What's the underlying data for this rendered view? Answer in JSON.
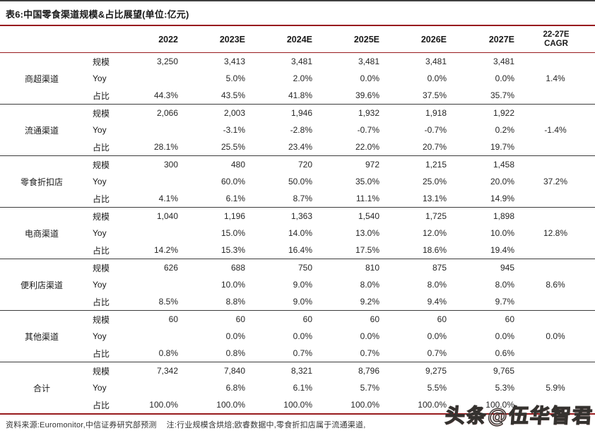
{
  "title": "表6:中国零食渠道规模&占比展望(单位:亿元)",
  "table": {
    "metric_labels": [
      "规模",
      "Yoy",
      "占比"
    ],
    "year_columns": [
      "2022",
      "2023E",
      "2024E",
      "2025E",
      "2026E",
      "2027E"
    ],
    "cagr_header_lines": [
      "22-27E",
      "CAGR"
    ],
    "groups": [
      {
        "name": "商超渠道",
        "cagr": "1.4%",
        "scale": [
          "3,250",
          "3,413",
          "3,481",
          "3,481",
          "3,481",
          "3,481"
        ],
        "yoy": [
          "",
          "5.0%",
          "2.0%",
          "0.0%",
          "0.0%",
          "0.0%"
        ],
        "share": [
          "44.3%",
          "43.5%",
          "41.8%",
          "39.6%",
          "37.5%",
          "35.7%"
        ]
      },
      {
        "name": "流通渠道",
        "cagr": "-1.4%",
        "scale": [
          "2,066",
          "2,003",
          "1,946",
          "1,932",
          "1,918",
          "1,922"
        ],
        "yoy": [
          "",
          "-3.1%",
          "-2.8%",
          "-0.7%",
          "-0.7%",
          "0.2%"
        ],
        "share": [
          "28.1%",
          "25.5%",
          "23.4%",
          "22.0%",
          "20.7%",
          "19.7%"
        ]
      },
      {
        "name": "零食折扣店",
        "cagr": "37.2%",
        "scale": [
          "300",
          "480",
          "720",
          "972",
          "1,215",
          "1,458"
        ],
        "yoy": [
          "",
          "60.0%",
          "50.0%",
          "35.0%",
          "25.0%",
          "20.0%"
        ],
        "share": [
          "4.1%",
          "6.1%",
          "8.7%",
          "11.1%",
          "13.1%",
          "14.9%"
        ]
      },
      {
        "name": "电商渠道",
        "cagr": "12.8%",
        "scale": [
          "1,040",
          "1,196",
          "1,363",
          "1,540",
          "1,725",
          "1,898"
        ],
        "yoy": [
          "",
          "15.0%",
          "14.0%",
          "13.0%",
          "12.0%",
          "10.0%"
        ],
        "share": [
          "14.2%",
          "15.3%",
          "16.4%",
          "17.5%",
          "18.6%",
          "19.4%"
        ]
      },
      {
        "name": "便利店渠道",
        "cagr": "8.6%",
        "scale": [
          "626",
          "688",
          "750",
          "810",
          "875",
          "945"
        ],
        "yoy": [
          "",
          "10.0%",
          "9.0%",
          "8.0%",
          "8.0%",
          "8.0%"
        ],
        "share": [
          "8.5%",
          "8.8%",
          "9.0%",
          "9.2%",
          "9.4%",
          "9.7%"
        ]
      },
      {
        "name": "其他渠道",
        "cagr": "0.0%",
        "scale": [
          "60",
          "60",
          "60",
          "60",
          "60",
          "60"
        ],
        "yoy": [
          "",
          "0.0%",
          "0.0%",
          "0.0%",
          "0.0%",
          "0.0%"
        ],
        "share": [
          "0.8%",
          "0.8%",
          "0.7%",
          "0.7%",
          "0.7%",
          "0.6%"
        ]
      },
      {
        "name": "合计",
        "cagr": "5.9%",
        "scale": [
          "7,342",
          "7,840",
          "8,321",
          "8,796",
          "9,275",
          "9,765"
        ],
        "yoy": [
          "",
          "6.8%",
          "6.1%",
          "5.7%",
          "5.5%",
          "5.3%"
        ],
        "share": [
          "100.0%",
          "100.0%",
          "100.0%",
          "100.0%",
          "100.0%",
          "100.0%"
        ]
      }
    ]
  },
  "footer": {
    "source": "资料来源:Euromonitor,中信证券研究部预测",
    "note": "注:行业规模含烘焙;欧睿数据中,零食折扣店属于流通渠道,"
  },
  "watermark": "头条@伍华智君",
  "colors": {
    "rule_red": "#981b1e",
    "row_divider": "#3c3c3c",
    "text": "#262626"
  }
}
